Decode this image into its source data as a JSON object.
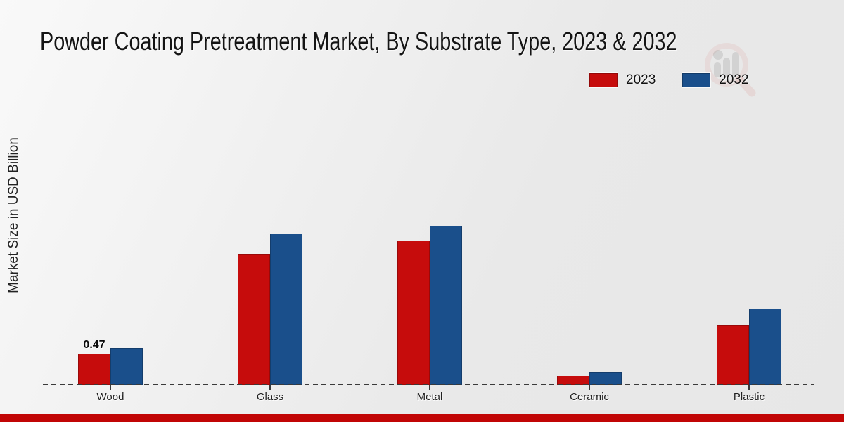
{
  "title": "Powder Coating Pretreatment Market, By Substrate Type, 2023 & 2032",
  "y_axis_label": "Market Size in USD Billion",
  "legend": {
    "items": [
      {
        "label": "2023",
        "color": "#c60c0c"
      },
      {
        "label": "2032",
        "color": "#1a4f8b"
      }
    ],
    "position": "top-right"
  },
  "colors": {
    "series_2023": "#c60c0c",
    "series_2032": "#1a4f8b",
    "baseline": "#3a3a3a",
    "bottom_accent_band": "#c10505",
    "background": "#ececec"
  },
  "watermark": "market-research-magnifier-logo",
  "chart_data": {
    "type": "bar",
    "title": "Powder Coating Pretreatment Market, By Substrate Type, 2023 & 2032",
    "categories": [
      "Wood",
      "Glass",
      "Metal",
      "Ceramic",
      "Plastic"
    ],
    "series": [
      {
        "name": "2023",
        "color": "#c60c0c",
        "values": [
          0.47,
          1.97,
          2.17,
          0.14,
          0.9
        ]
      },
      {
        "name": "2032",
        "color": "#1a4f8b",
        "values": [
          0.55,
          2.27,
          2.39,
          0.19,
          1.14
        ]
      }
    ],
    "bar_labels": [
      {
        "text": "0.47",
        "category": "Wood",
        "series": "2023"
      }
    ],
    "xlabel": "",
    "ylabel": "Market Size in USD Billion",
    "ylim": [
      0,
      3
    ],
    "grid": false,
    "y_ticks_visible": false,
    "legend_position": "top-right",
    "baseline_style": "dashed"
  }
}
